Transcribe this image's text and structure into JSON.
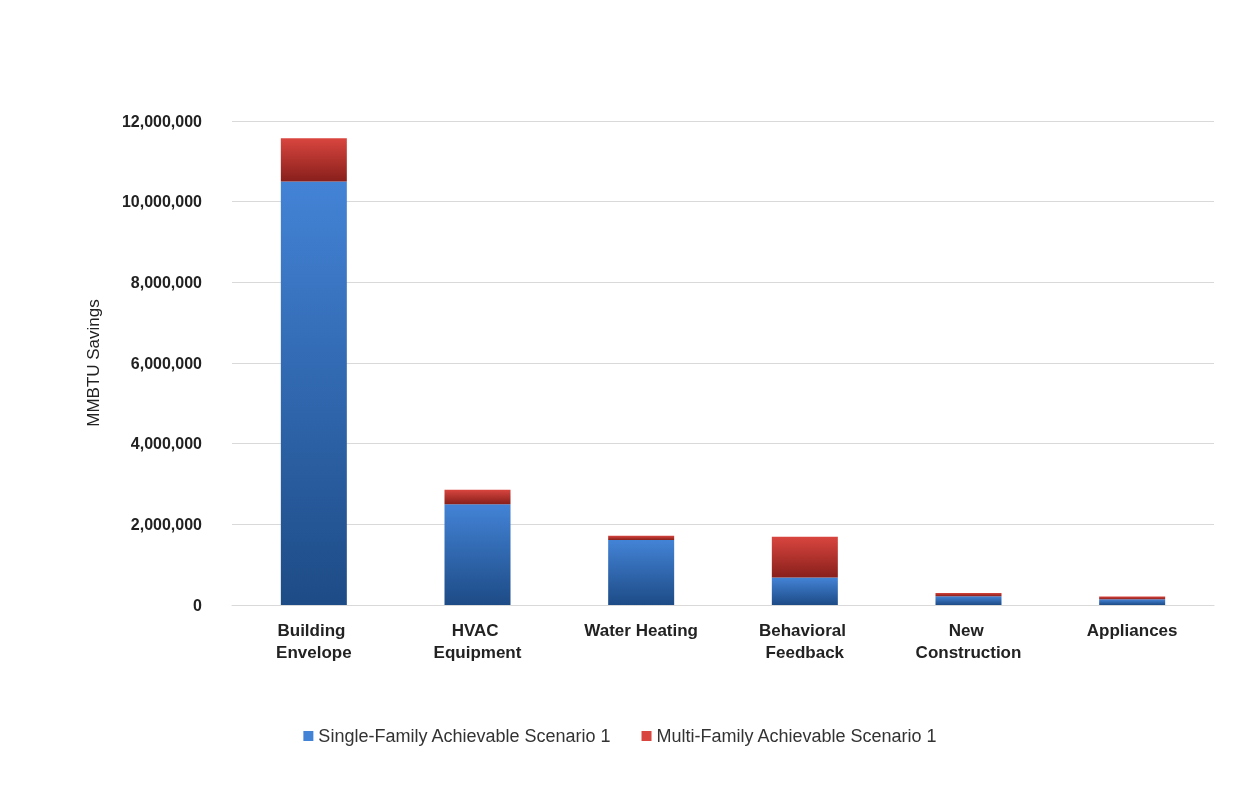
{
  "chart_data": {
    "type": "bar",
    "stacked": true,
    "categories": [
      "Building Envelope",
      "HVAC Equipment",
      "Water Heating",
      "Behavioral Feedback",
      "New Construction",
      "Appliances"
    ],
    "ylabel": "MMBTU Savings",
    "series": [
      {
        "name": "Single-Family Achievable Scenario 1",
        "color": "#4383d6",
        "values": [
          10500000,
          2500000,
          1610000,
          680000,
          220000,
          140000
        ]
      },
      {
        "name": "Multi-Family Achievable Scenario 1",
        "color": "#d9453f",
        "values": [
          1070000,
          360000,
          110000,
          1010000,
          80000,
          70000
        ]
      }
    ],
    "ylim": [
      0,
      12000000
    ],
    "yticks": [
      0,
      {
        "value": 2000000,
        "label": "2,000,000"
      },
      {
        "value": 4000000,
        "label": "4,000,000"
      },
      {
        "value": 6000000,
        "label": "6,000,000"
      },
      {
        "value": 8000000,
        "label": "8,000,000"
      },
      {
        "value": 10000000,
        "label": "10,000,000"
      },
      {
        "value": 12000000,
        "label": "12,000,000"
      }
    ],
    "grid": "y",
    "legend": "bottom"
  }
}
